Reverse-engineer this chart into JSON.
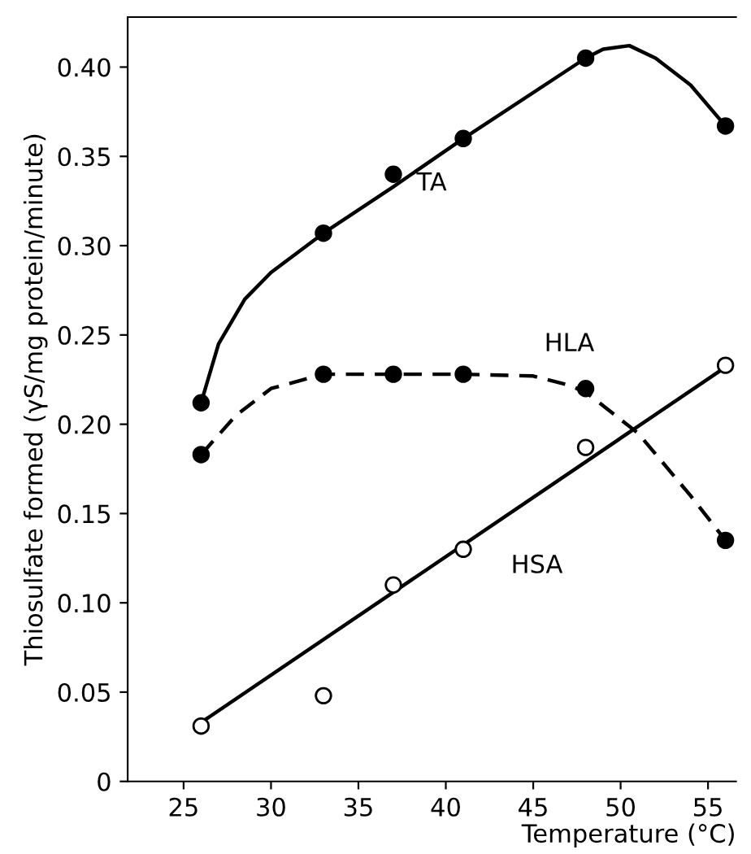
{
  "chart_data": {
    "type": "scatter",
    "xlabel": "Temperature (°C)",
    "ylabel": "Thiosulfate formed (γS/mg protein/minute)",
    "xlim": [
      21.8,
      56.6
    ],
    "ylim": [
      0,
      0.428
    ],
    "xticks": [
      25,
      30,
      35,
      40,
      45,
      50,
      55
    ],
    "yticks": [
      0,
      {
        "value": 0.05,
        "label": "0.05"
      },
      {
        "value": 0.1,
        "label": "0.10"
      },
      {
        "value": 0.15,
        "label": "0.15"
      },
      {
        "value": 0.2,
        "label": "0.20"
      },
      {
        "value": 0.25,
        "label": "0.25"
      },
      {
        "value": 0.3,
        "label": "0.30"
      },
      {
        "value": 0.35,
        "label": "0.35"
      },
      {
        "value": 0.4,
        "label": "0.40"
      }
    ],
    "grid": false,
    "legend": false,
    "series": [
      {
        "type": "line",
        "name": "TA",
        "color": "#000000",
        "line_style": "solid",
        "marker": "none",
        "x": [
          26,
          27,
          28.5,
          30,
          33,
          37,
          41,
          48,
          49,
          50.5,
          52,
          54,
          56
        ],
        "values": [
          0.212,
          0.245,
          0.27,
          0.285,
          0.307,
          0.333,
          0.36,
          0.405,
          0.41,
          0.412,
          0.405,
          0.39,
          0.367
        ]
      },
      {
        "type": "line",
        "name": "HLA",
        "color": "#000000",
        "line_style": "dashed",
        "marker": "none",
        "x": [
          26,
          28,
          30,
          33,
          41,
          45,
          47,
          48,
          51,
          54,
          56
        ],
        "values": [
          0.183,
          0.205,
          0.22,
          0.228,
          0.228,
          0.227,
          0.222,
          0.218,
          0.195,
          0.16,
          0.135
        ]
      },
      {
        "type": "line",
        "name": "HSA",
        "color": "#000000",
        "line_style": "solid",
        "marker": "none",
        "x": [
          26,
          56
        ],
        "values": [
          0.033,
          0.232
        ]
      },
      {
        "color": "#000000",
        "marker": "circle",
        "x": [
          26,
          33,
          37,
          41,
          48,
          56
        ],
        "values": [
          0.212,
          0.307,
          0.34,
          0.36,
          0.405,
          0.367
        ]
      },
      {
        "color": "#000000",
        "marker": "circle",
        "x": [
          26,
          33,
          37,
          41,
          48,
          56
        ],
        "values": [
          0.183,
          0.228,
          0.228,
          0.228,
          0.22,
          0.135
        ]
      },
      {
        "color": "#ffffff",
        "marker": "circle",
        "x": [
          26,
          33,
          37,
          41,
          48,
          56
        ],
        "values": [
          0.031,
          0.048,
          0.11,
          0.13,
          0.187,
          0.233
        ]
      }
    ]
  }
}
